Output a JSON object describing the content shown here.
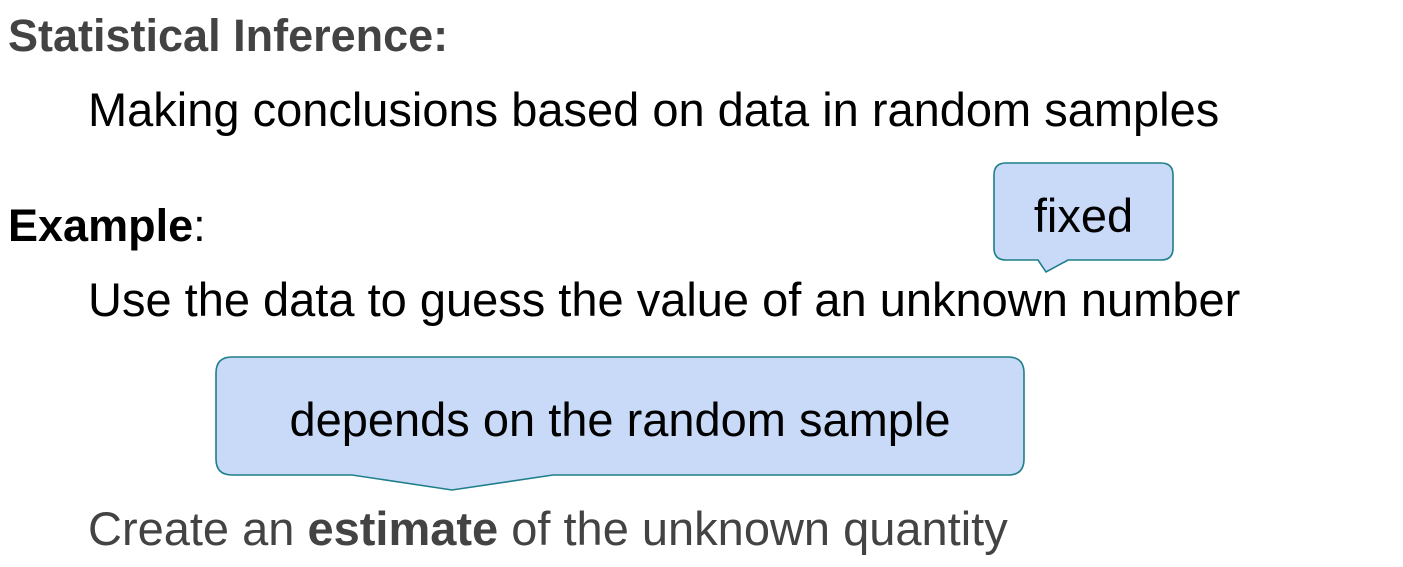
{
  "heading_inference": "Statistical Inference:",
  "definition": "Making conclusions based on data in random samples",
  "example": {
    "label": "Example",
    "colon": ":",
    "text": "Use the data to guess the value of an unknown number"
  },
  "callouts": {
    "fixed": "fixed",
    "depends": "depends on the random sample"
  },
  "estimate_line": {
    "prefix": "Create an ",
    "bold": "estimate",
    "suffix": " of the unknown quantity"
  },
  "colors": {
    "callout_fill": "#c9daf8",
    "callout_stroke": "#1e7f8a",
    "heading_gray": "#434343"
  }
}
